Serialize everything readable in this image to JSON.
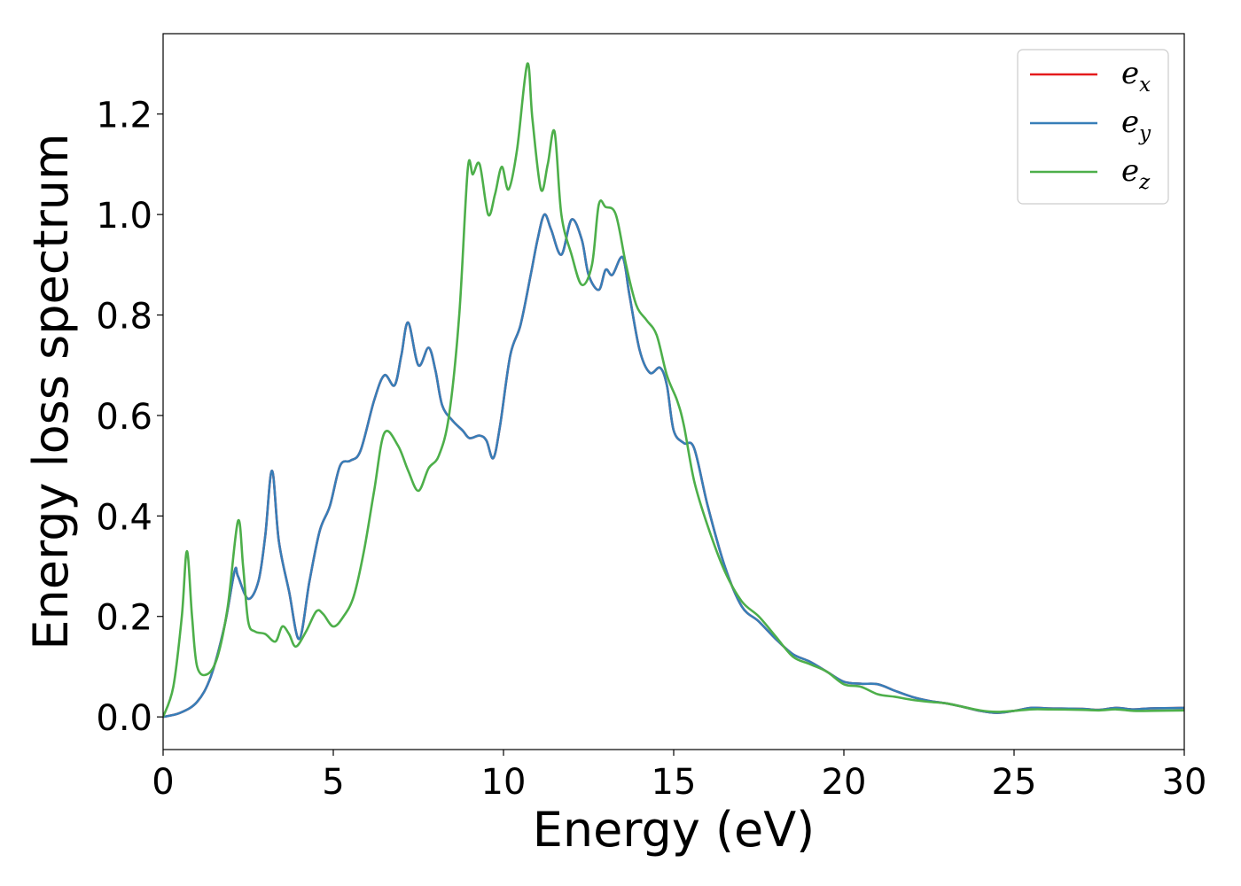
{
  "chart_data": {
    "type": "line",
    "title": "",
    "xlabel": "Energy (eV)",
    "ylabel": "Energy loss spectrum",
    "xlim": [
      0,
      30
    ],
    "ylim": [
      -0.065,
      1.36
    ],
    "xticks": [
      0,
      5,
      10,
      15,
      20,
      25,
      30
    ],
    "xtick_labels": [
      "0",
      "5",
      "10",
      "15",
      "20",
      "25",
      "30"
    ],
    "yticks": [
      0.0,
      0.2,
      0.4,
      0.6,
      0.8,
      1.0,
      1.2
    ],
    "ytick_labels": [
      "0.0",
      "0.2",
      "0.4",
      "0.6",
      "0.8",
      "1.0",
      "1.2"
    ],
    "grid": false,
    "legend_position": "top-right",
    "series": [
      {
        "name": "e_x",
        "legend_base": "e",
        "legend_sub": "x",
        "color": "#e41a1c",
        "points": [
          [
            0,
            0.0
          ],
          [
            0.5,
            0.008
          ],
          [
            1.0,
            0.03
          ],
          [
            1.4,
            0.08
          ],
          [
            1.8,
            0.18
          ],
          [
            2.1,
            0.29
          ],
          [
            2.2,
            0.28
          ],
          [
            2.5,
            0.235
          ],
          [
            2.8,
            0.27
          ],
          [
            3.0,
            0.36
          ],
          [
            3.2,
            0.49
          ],
          [
            3.4,
            0.35
          ],
          [
            3.7,
            0.25
          ],
          [
            4.0,
            0.155
          ],
          [
            4.3,
            0.27
          ],
          [
            4.6,
            0.37
          ],
          [
            4.9,
            0.42
          ],
          [
            5.2,
            0.5
          ],
          [
            5.5,
            0.51
          ],
          [
            5.8,
            0.53
          ],
          [
            6.2,
            0.63
          ],
          [
            6.5,
            0.68
          ],
          [
            6.8,
            0.66
          ],
          [
            7.0,
            0.72
          ],
          [
            7.2,
            0.785
          ],
          [
            7.5,
            0.7
          ],
          [
            7.8,
            0.735
          ],
          [
            8.0,
            0.69
          ],
          [
            8.2,
            0.62
          ],
          [
            8.5,
            0.59
          ],
          [
            8.8,
            0.57
          ],
          [
            9.0,
            0.555
          ],
          [
            9.3,
            0.56
          ],
          [
            9.5,
            0.55
          ],
          [
            9.7,
            0.515
          ],
          [
            9.9,
            0.58
          ],
          [
            10.2,
            0.72
          ],
          [
            10.5,
            0.78
          ],
          [
            10.8,
            0.88
          ],
          [
            11.0,
            0.95
          ],
          [
            11.2,
            1.0
          ],
          [
            11.4,
            0.97
          ],
          [
            11.7,
            0.92
          ],
          [
            12.0,
            0.99
          ],
          [
            12.3,
            0.95
          ],
          [
            12.5,
            0.88
          ],
          [
            12.8,
            0.85
          ],
          [
            13.0,
            0.89
          ],
          [
            13.2,
            0.88
          ],
          [
            13.5,
            0.915
          ],
          [
            13.7,
            0.84
          ],
          [
            14.0,
            0.73
          ],
          [
            14.3,
            0.685
          ],
          [
            14.6,
            0.695
          ],
          [
            14.8,
            0.66
          ],
          [
            15.0,
            0.57
          ],
          [
            15.3,
            0.545
          ],
          [
            15.6,
            0.535
          ],
          [
            16.0,
            0.42
          ],
          [
            16.5,
            0.3
          ],
          [
            17.0,
            0.22
          ],
          [
            17.5,
            0.19
          ],
          [
            18.0,
            0.155
          ],
          [
            18.5,
            0.125
          ],
          [
            19.0,
            0.11
          ],
          [
            19.5,
            0.09
          ],
          [
            20.0,
            0.07
          ],
          [
            20.5,
            0.066
          ],
          [
            21.0,
            0.065
          ],
          [
            21.5,
            0.052
          ],
          [
            22.0,
            0.04
          ],
          [
            22.5,
            0.032
          ],
          [
            23.0,
            0.027
          ],
          [
            23.5,
            0.02
          ],
          [
            24.0,
            0.012
          ],
          [
            24.5,
            0.008
          ],
          [
            25.0,
            0.012
          ],
          [
            25.5,
            0.018
          ],
          [
            26.0,
            0.017
          ],
          [
            27.0,
            0.016
          ],
          [
            27.5,
            0.014
          ],
          [
            28.0,
            0.018
          ],
          [
            28.5,
            0.015
          ],
          [
            29.0,
            0.017
          ],
          [
            30.0,
            0.018
          ]
        ]
      },
      {
        "name": "e_y",
        "legend_base": "e",
        "legend_sub": "y",
        "color": "#377eb8",
        "points": [
          [
            0,
            0.0
          ],
          [
            0.5,
            0.008
          ],
          [
            1.0,
            0.03
          ],
          [
            1.4,
            0.08
          ],
          [
            1.8,
            0.18
          ],
          [
            2.1,
            0.29
          ],
          [
            2.2,
            0.28
          ],
          [
            2.5,
            0.235
          ],
          [
            2.8,
            0.27
          ],
          [
            3.0,
            0.36
          ],
          [
            3.2,
            0.49
          ],
          [
            3.4,
            0.35
          ],
          [
            3.7,
            0.25
          ],
          [
            4.0,
            0.155
          ],
          [
            4.3,
            0.27
          ],
          [
            4.6,
            0.37
          ],
          [
            4.9,
            0.42
          ],
          [
            5.2,
            0.5
          ],
          [
            5.5,
            0.51
          ],
          [
            5.8,
            0.53
          ],
          [
            6.2,
            0.63
          ],
          [
            6.5,
            0.68
          ],
          [
            6.8,
            0.66
          ],
          [
            7.0,
            0.72
          ],
          [
            7.2,
            0.785
          ],
          [
            7.5,
            0.7
          ],
          [
            7.8,
            0.735
          ],
          [
            8.0,
            0.69
          ],
          [
            8.2,
            0.62
          ],
          [
            8.5,
            0.59
          ],
          [
            8.8,
            0.57
          ],
          [
            9.0,
            0.555
          ],
          [
            9.3,
            0.56
          ],
          [
            9.5,
            0.55
          ],
          [
            9.7,
            0.515
          ],
          [
            9.9,
            0.58
          ],
          [
            10.2,
            0.72
          ],
          [
            10.5,
            0.78
          ],
          [
            10.8,
            0.88
          ],
          [
            11.0,
            0.95
          ],
          [
            11.2,
            1.0
          ],
          [
            11.4,
            0.97
          ],
          [
            11.7,
            0.92
          ],
          [
            12.0,
            0.99
          ],
          [
            12.3,
            0.95
          ],
          [
            12.5,
            0.88
          ],
          [
            12.8,
            0.85
          ],
          [
            13.0,
            0.89
          ],
          [
            13.2,
            0.88
          ],
          [
            13.5,
            0.915
          ],
          [
            13.7,
            0.84
          ],
          [
            14.0,
            0.73
          ],
          [
            14.3,
            0.685
          ],
          [
            14.6,
            0.695
          ],
          [
            14.8,
            0.66
          ],
          [
            15.0,
            0.57
          ],
          [
            15.3,
            0.545
          ],
          [
            15.6,
            0.535
          ],
          [
            16.0,
            0.42
          ],
          [
            16.5,
            0.3
          ],
          [
            17.0,
            0.22
          ],
          [
            17.5,
            0.19
          ],
          [
            18.0,
            0.155
          ],
          [
            18.5,
            0.125
          ],
          [
            19.0,
            0.11
          ],
          [
            19.5,
            0.09
          ],
          [
            20.0,
            0.07
          ],
          [
            20.5,
            0.066
          ],
          [
            21.0,
            0.065
          ],
          [
            21.5,
            0.052
          ],
          [
            22.0,
            0.04
          ],
          [
            22.5,
            0.032
          ],
          [
            23.0,
            0.027
          ],
          [
            23.5,
            0.02
          ],
          [
            24.0,
            0.012
          ],
          [
            24.5,
            0.008
          ],
          [
            25.0,
            0.012
          ],
          [
            25.5,
            0.018
          ],
          [
            26.0,
            0.017
          ],
          [
            27.0,
            0.016
          ],
          [
            27.5,
            0.014
          ],
          [
            28.0,
            0.018
          ],
          [
            28.5,
            0.015
          ],
          [
            29.0,
            0.017
          ],
          [
            30.0,
            0.018
          ]
        ]
      },
      {
        "name": "e_z",
        "legend_base": "e",
        "legend_sub": "z",
        "color": "#4daf4a",
        "points": [
          [
            0,
            0.0
          ],
          [
            0.3,
            0.06
          ],
          [
            0.55,
            0.2
          ],
          [
            0.7,
            0.33
          ],
          [
            0.85,
            0.2
          ],
          [
            1.0,
            0.1
          ],
          [
            1.3,
            0.085
          ],
          [
            1.6,
            0.12
          ],
          [
            1.9,
            0.22
          ],
          [
            2.2,
            0.39
          ],
          [
            2.35,
            0.3
          ],
          [
            2.5,
            0.19
          ],
          [
            2.7,
            0.17
          ],
          [
            3.0,
            0.165
          ],
          [
            3.3,
            0.15
          ],
          [
            3.5,
            0.18
          ],
          [
            3.7,
            0.165
          ],
          [
            3.9,
            0.14
          ],
          [
            4.2,
            0.17
          ],
          [
            4.5,
            0.21
          ],
          [
            4.7,
            0.205
          ],
          [
            5.0,
            0.18
          ],
          [
            5.3,
            0.2
          ],
          [
            5.6,
            0.24
          ],
          [
            5.9,
            0.33
          ],
          [
            6.2,
            0.45
          ],
          [
            6.5,
            0.565
          ],
          [
            6.9,
            0.54
          ],
          [
            7.2,
            0.49
          ],
          [
            7.5,
            0.45
          ],
          [
            7.8,
            0.495
          ],
          [
            8.1,
            0.52
          ],
          [
            8.4,
            0.6
          ],
          [
            8.7,
            0.8
          ],
          [
            8.95,
            1.09
          ],
          [
            9.1,
            1.08
          ],
          [
            9.3,
            1.1
          ],
          [
            9.55,
            1.0
          ],
          [
            9.75,
            1.04
          ],
          [
            9.95,
            1.095
          ],
          [
            10.15,
            1.05
          ],
          [
            10.4,
            1.13
          ],
          [
            10.7,
            1.3
          ],
          [
            10.85,
            1.19
          ],
          [
            11.1,
            1.05
          ],
          [
            11.3,
            1.1
          ],
          [
            11.5,
            1.165
          ],
          [
            11.7,
            1.0
          ],
          [
            12.0,
            0.92
          ],
          [
            12.3,
            0.86
          ],
          [
            12.6,
            0.9
          ],
          [
            12.8,
            1.02
          ],
          [
            13.0,
            1.015
          ],
          [
            13.3,
            1.0
          ],
          [
            13.6,
            0.9
          ],
          [
            13.9,
            0.82
          ],
          [
            14.2,
            0.79
          ],
          [
            14.5,
            0.76
          ],
          [
            14.8,
            0.68
          ],
          [
            15.1,
            0.63
          ],
          [
            15.3,
            0.58
          ],
          [
            15.6,
            0.47
          ],
          [
            16.0,
            0.38
          ],
          [
            16.5,
            0.29
          ],
          [
            17.0,
            0.23
          ],
          [
            17.5,
            0.2
          ],
          [
            18.0,
            0.16
          ],
          [
            18.5,
            0.12
          ],
          [
            19.0,
            0.105
          ],
          [
            19.5,
            0.09
          ],
          [
            20.0,
            0.065
          ],
          [
            20.5,
            0.06
          ],
          [
            21.0,
            0.045
          ],
          [
            21.5,
            0.04
          ],
          [
            22.0,
            0.034
          ],
          [
            22.5,
            0.03
          ],
          [
            23.0,
            0.027
          ],
          [
            23.5,
            0.02
          ],
          [
            24.0,
            0.013
          ],
          [
            24.5,
            0.01
          ],
          [
            25.0,
            0.012
          ],
          [
            25.5,
            0.015
          ],
          [
            26.0,
            0.015
          ],
          [
            27.0,
            0.014
          ],
          [
            27.5,
            0.013
          ],
          [
            28.0,
            0.015
          ],
          [
            28.5,
            0.012
          ],
          [
            29.0,
            0.012
          ],
          [
            30.0,
            0.013
          ]
        ]
      }
    ]
  }
}
